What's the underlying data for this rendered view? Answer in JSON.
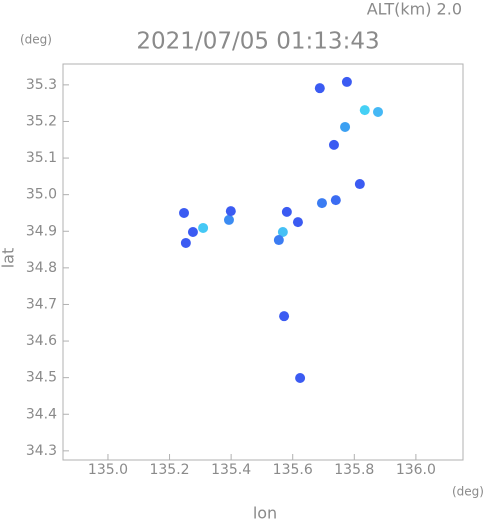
{
  "chart_data": {
    "type": "scatter",
    "title": "2021/07/05 01:13:43",
    "annotation": "ALT(km) 2.0",
    "x_label": "lon",
    "y_label": "lat",
    "x_unit": "(deg)",
    "y_unit": "(deg)",
    "xlim": [
      134.854,
      136.153
    ],
    "ylim": [
      34.275,
      35.357
    ],
    "xticks": [
      {
        "value": 135,
        "label": "135.0"
      },
      135.2,
      135.4,
      135.6,
      135.8,
      {
        "value": 136,
        "label": "136.0"
      }
    ],
    "yticks": [
      34.3,
      34.4,
      34.5,
      34.6,
      34.7,
      34.8,
      34.9,
      {
        "value": 35,
        "label": "35.0"
      },
      35.1,
      35.2,
      35.3
    ],
    "x": [
      135.688,
      135.776,
      135.834,
      135.877,
      135.77,
      135.734,
      135.818,
      135.695,
      135.74,
      135.309,
      135.276,
      135.247,
      135.253,
      135.393,
      135.399,
      135.568,
      135.581,
      135.617,
      135.555,
      135.624,
      135.572
    ],
    "values": [
      35.291,
      35.308,
      35.231,
      35.226,
      35.185,
      35.136,
      35.029,
      34.977,
      34.985,
      34.909,
      34.898,
      34.95,
      34.868,
      34.931,
      34.955,
      34.898,
      34.953,
      34.925,
      34.876,
      34.499,
      34.668
    ],
    "colors": [
      "#3b5bf2",
      "#3b5bf2",
      "#45d0f5",
      "#45b8f5",
      "#3ca0f2",
      "#3b5bf2",
      "#3b5bf2",
      "#3b7cf2",
      "#3b6cf2",
      "#45c8f5",
      "#3b5bf2",
      "#3b5bf2",
      "#3b5bf2",
      "#3b8cf2",
      "#3b5bf2",
      "#45c0f5",
      "#3b5bf2",
      "#3b5bf2",
      "#3b7cf2",
      "#3b5bf2",
      "#3b5bf2"
    ]
  }
}
